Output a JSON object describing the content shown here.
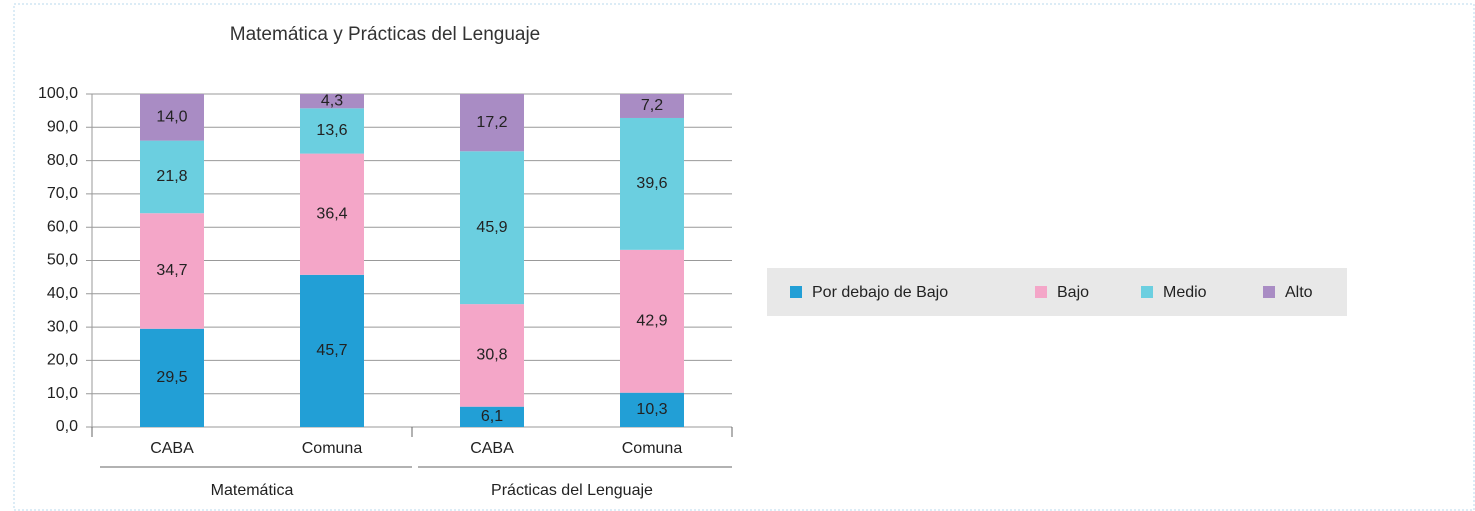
{
  "chart_data": {
    "type": "stacked_bar",
    "title": "Matemática y Prácticas del Lenguaje",
    "categories": [
      "CABA",
      "Comuna",
      "CABA",
      "Comuna"
    ],
    "group_labels": [
      "Matemática",
      "Prácticas del Lenguaje"
    ],
    "series": [
      {
        "name": "Por debajo de Bajo",
        "color": "#229fd6",
        "values": [
          29.5,
          45.7,
          6.1,
          10.3
        ],
        "value_labels": [
          "29,5",
          "45,7",
          "6,1",
          "10,3"
        ]
      },
      {
        "name": "Bajo",
        "color": "#f4a6c8",
        "values": [
          34.7,
          36.4,
          30.8,
          42.9
        ],
        "value_labels": [
          "34,7",
          "36,4",
          "30,8",
          "42,9"
        ]
      },
      {
        "name": "Medio",
        "color": "#6bcfe0",
        "values": [
          21.8,
          13.6,
          45.9,
          39.6
        ],
        "value_labels": [
          "21,8",
          "13,6",
          "45,9",
          "39,6"
        ]
      },
      {
        "name": "Alto",
        "color": "#a98cc4",
        "values": [
          14.0,
          4.3,
          17.2,
          7.2
        ],
        "value_labels": [
          "14,0",
          "4,3",
          "17,2",
          "7,2"
        ]
      }
    ],
    "ylim": [
      0,
      100
    ],
    "yticks": [
      {
        "value": 0,
        "label": "0,0"
      },
      {
        "value": 10,
        "label": "10,0"
      },
      {
        "value": 20,
        "label": "20,0"
      },
      {
        "value": 30,
        "label": "30,0"
      },
      {
        "value": 40,
        "label": "40,0"
      },
      {
        "value": 50,
        "label": "50,0"
      },
      {
        "value": 60,
        "label": "60,0"
      },
      {
        "value": 70,
        "label": "70,0"
      },
      {
        "value": 80,
        "label": "80,0"
      },
      {
        "value": 90,
        "label": "90,0"
      },
      {
        "value": 100,
        "label": "100,0"
      }
    ],
    "grid": true,
    "legend": "right"
  }
}
